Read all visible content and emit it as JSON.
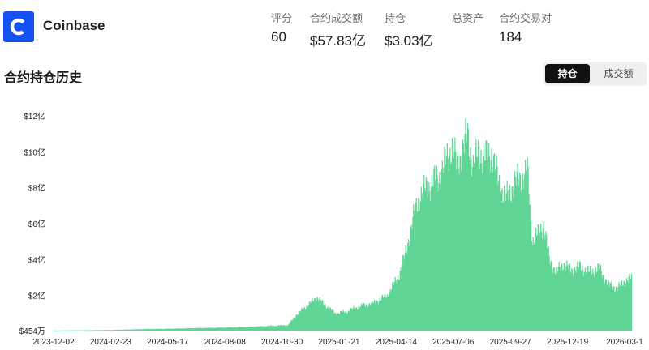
{
  "header": {
    "logo_icon": "coinbase-logo-icon",
    "brand_color": "#1652f0",
    "name": "Coinbase",
    "stats": [
      {
        "label": "评分",
        "value": "60"
      },
      {
        "label": "合约成交额",
        "value": "$57.83亿"
      },
      {
        "label": "持仓",
        "value": "$3.03亿"
      },
      {
        "label": "总资产",
        "value": ""
      },
      {
        "label": "合约交易对",
        "value": "184"
      }
    ]
  },
  "section": {
    "title": "合约持仓历史",
    "toggle": {
      "active_label": "持仓",
      "inactive_label": "成交额"
    }
  },
  "chart_data": {
    "type": "bar",
    "title": "",
    "color": "#5fd595",
    "y_tick_labels": [
      "$454万",
      "$2亿",
      "$4亿",
      "$6亿",
      "$8亿",
      "$10亿",
      "$12亿"
    ],
    "y_ticks": [
      0.0454,
      2,
      4,
      6,
      8,
      10,
      12
    ],
    "ylim": [
      0.0454,
      12
    ],
    "y_unit": "亿 USD",
    "x_tick_labels": [
      "2023-12-02",
      "2024-02-23",
      "2024-05-17",
      "2024-08-08",
      "2024-10-30",
      "2025-01-21",
      "2025-04-14",
      "2025-07-06",
      "2025-09-27",
      "2025-12-19",
      "2026-03-1"
    ],
    "x_range": [
      "2023-12-02",
      "2026-03-02"
    ],
    "series": [
      {
        "points": [
          [
            "2023-12-02",
            0.05
          ],
          [
            "2024-01-15",
            0.06
          ],
          [
            "2024-02-23",
            0.08
          ],
          [
            "2024-04-01",
            0.12
          ],
          [
            "2024-05-17",
            0.15
          ],
          [
            "2024-06-20",
            0.18
          ],
          [
            "2024-08-08",
            0.22
          ],
          [
            "2024-09-20",
            0.28
          ],
          [
            "2024-10-30",
            0.35
          ],
          [
            "2024-11-10",
            0.9
          ],
          [
            "2024-11-25",
            1.4
          ],
          [
            "2024-12-10",
            1.9
          ],
          [
            "2024-12-20",
            1.5
          ],
          [
            "2025-01-05",
            1.0
          ],
          [
            "2025-01-21",
            1.1
          ],
          [
            "2025-02-10",
            1.4
          ],
          [
            "2025-03-01",
            1.6
          ],
          [
            "2025-03-20",
            2.0
          ],
          [
            "2025-04-05",
            3.1
          ],
          [
            "2025-04-14",
            4.2
          ],
          [
            "2025-04-25",
            6.2
          ],
          [
            "2025-05-05",
            7.6
          ],
          [
            "2025-05-20",
            8.2
          ],
          [
            "2025-06-01",
            8.6
          ],
          [
            "2025-06-10",
            9.4
          ],
          [
            "2025-06-20",
            10.4
          ],
          [
            "2025-06-26",
            9.3
          ],
          [
            "2025-07-06",
            10.2
          ],
          [
            "2025-07-12",
            11.0
          ],
          [
            "2025-07-20",
            9.2
          ],
          [
            "2025-07-28",
            10.1
          ],
          [
            "2025-08-05",
            9.6
          ],
          [
            "2025-08-15",
            10.0
          ],
          [
            "2025-08-25",
            8.3
          ],
          [
            "2025-09-05",
            7.4
          ],
          [
            "2025-09-15",
            8.2
          ],
          [
            "2025-09-27",
            8.6
          ],
          [
            "2025-10-05",
            8.9
          ],
          [
            "2025-10-12",
            5.1
          ],
          [
            "2025-10-20",
            5.4
          ],
          [
            "2025-10-28",
            6.0
          ],
          [
            "2025-11-05",
            4.0
          ],
          [
            "2025-11-15",
            3.3
          ],
          [
            "2025-11-25",
            3.8
          ],
          [
            "2025-12-05",
            3.4
          ],
          [
            "2025-12-19",
            3.6
          ],
          [
            "2026-01-01",
            3.3
          ],
          [
            "2026-01-15",
            3.5
          ],
          [
            "2026-01-28",
            2.6
          ],
          [
            "2026-02-10",
            2.4
          ],
          [
            "2026-02-20",
            2.8
          ],
          [
            "2026-03-02",
            2.95
          ]
        ]
      }
    ],
    "grid": false,
    "legend": "none"
  }
}
